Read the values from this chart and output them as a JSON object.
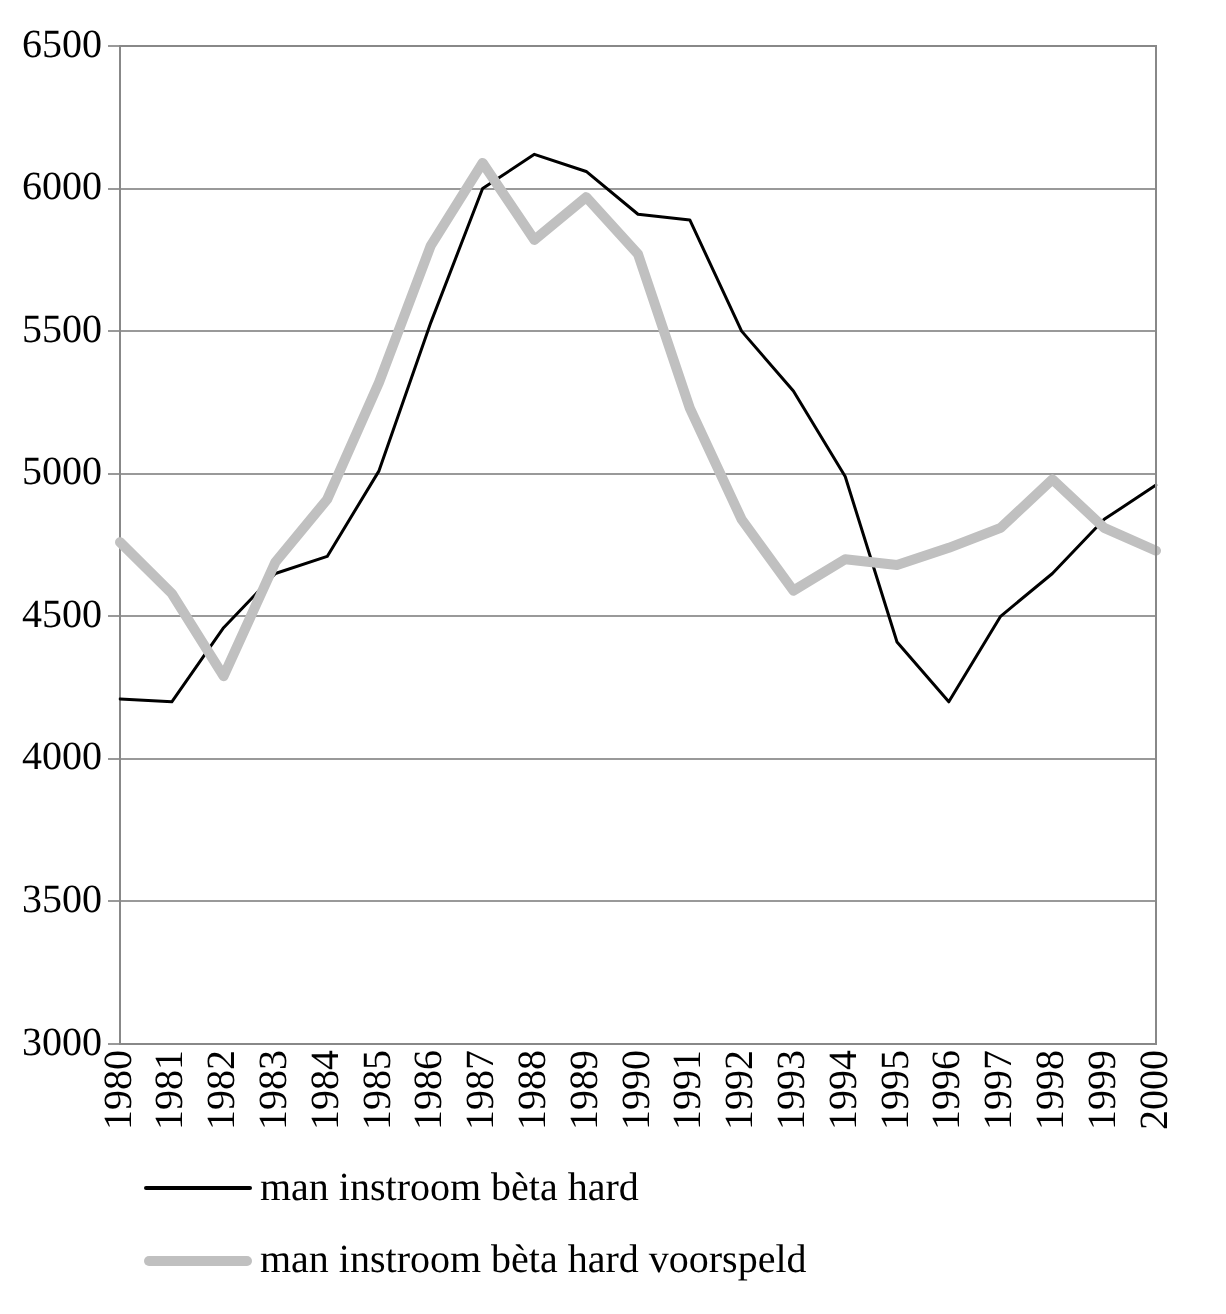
{
  "chart_data": {
    "type": "line",
    "categories": [
      "1980",
      "1981",
      "1982",
      "1983",
      "1984",
      "1985",
      "1986",
      "1987",
      "1988",
      "1989",
      "1990",
      "1991",
      "1992",
      "1993",
      "1994",
      "1995",
      "1996",
      "1997",
      "1998",
      "1999",
      "2000"
    ],
    "series": [
      {
        "name": "man instroom bèta hard",
        "color": "#000000",
        "values": [
          4210,
          4200,
          4460,
          4650,
          4710,
          5010,
          5530,
          6000,
          6120,
          6060,
          5910,
          5890,
          5500,
          5290,
          4990,
          4410,
          4200,
          4500,
          4650,
          4840,
          4960
        ]
      },
      {
        "name": "man instroom bèta hard voorspeld",
        "color": "#c0c0c0",
        "values": [
          4760,
          4580,
          4290,
          4690,
          4910,
          5320,
          5800,
          6090,
          5820,
          5970,
          5770,
          5230,
          4840,
          4590,
          4700,
          4680,
          4740,
          4810,
          4980,
          4810,
          4730
        ]
      }
    ],
    "ylim": [
      3000,
      6500
    ],
    "yticks": [
      3000,
      3500,
      4000,
      4500,
      5000,
      5500,
      6000,
      6500
    ],
    "grid": "y",
    "legend": "bottom",
    "marker": "none",
    "line_style": "solid"
  }
}
